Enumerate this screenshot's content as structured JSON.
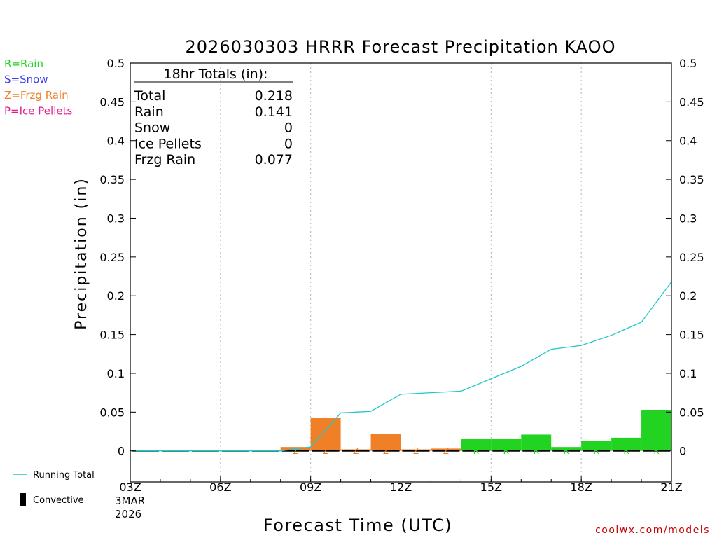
{
  "chart_data": {
    "type": "bar",
    "title": "2026030303 HRRR Forecast Precipitation KAOO",
    "xlabel": "Forecast Time (UTC)",
    "ylabel": "Precipitation (in)",
    "ylim": [
      -0.04,
      0.5
    ],
    "y_ticks": [
      0,
      0.05,
      0.1,
      0.15,
      0.2,
      0.25,
      0.3,
      0.35,
      0.4,
      0.45,
      0.5
    ],
    "y_tick_labels": [
      "0",
      "0.05",
      "0.1",
      "0.15",
      "0.2",
      "0.25",
      "0.3",
      "0.35",
      "0.4",
      "0.45",
      "0.5"
    ],
    "x_range_hours": [
      3,
      21
    ],
    "x_ticks": [
      {
        "hour": 3,
        "label": "03Z"
      },
      {
        "hour": 6,
        "label": "06Z"
      },
      {
        "hour": 9,
        "label": "09Z"
      },
      {
        "hour": 12,
        "label": "12Z"
      },
      {
        "hour": 15,
        "label": "15Z"
      },
      {
        "hour": 18,
        "label": "18Z"
      },
      {
        "hour": 21,
        "label": "21Z"
      }
    ],
    "x_date_label_1": "3MAR",
    "x_date_label_2": "2026",
    "hourly_precip": [
      {
        "hour": 4,
        "value": 0.0,
        "type": "",
        "convective": 0
      },
      {
        "hour": 5,
        "value": 0.0,
        "type": "",
        "convective": 0
      },
      {
        "hour": 6,
        "value": 0.0,
        "type": "",
        "convective": 0
      },
      {
        "hour": 7,
        "value": 0.0,
        "type": "",
        "convective": 0
      },
      {
        "hour": 8,
        "value": 0.0,
        "type": "",
        "convective": 0
      },
      {
        "hour": 9,
        "value": 0.005,
        "type": "Z",
        "convective": 0
      },
      {
        "hour": 10,
        "value": 0.043,
        "type": "Z",
        "convective": 0
      },
      {
        "hour": 11,
        "value": 0.002,
        "type": "Z",
        "convective": 0
      },
      {
        "hour": 12,
        "value": 0.022,
        "type": "Z",
        "convective": 0
      },
      {
        "hour": 13,
        "value": 0.002,
        "type": "Z",
        "convective": 0
      },
      {
        "hour": 14,
        "value": 0.003,
        "type": "Z",
        "convective": 0
      },
      {
        "hour": 15,
        "value": 0.016,
        "type": "R",
        "convective": 0
      },
      {
        "hour": 16,
        "value": 0.016,
        "type": "R",
        "convective": 0
      },
      {
        "hour": 17,
        "value": 0.021,
        "type": "R",
        "convective": 0
      },
      {
        "hour": 18,
        "value": 0.005,
        "type": "R",
        "convective": 0
      },
      {
        "hour": 19,
        "value": 0.013,
        "type": "R",
        "convective": 0
      },
      {
        "hour": 20,
        "value": 0.017,
        "type": "R",
        "convective": 0
      },
      {
        "hour": 21,
        "value": 0.053,
        "type": "R",
        "convective": 0
      }
    ],
    "running_total": {
      "name": "Running Total",
      "x": [
        4,
        5,
        6,
        7,
        8,
        9,
        10,
        11,
        12,
        13,
        14,
        15,
        16,
        17,
        18,
        19,
        20,
        21
      ],
      "values": [
        0.0,
        0.0,
        0.0,
        0.0,
        0.0,
        0.005,
        0.049,
        0.051,
        0.073,
        0.075,
        0.077,
        0.093,
        0.109,
        0.131,
        0.136,
        0.149,
        0.166,
        0.218
      ]
    },
    "totals_box": {
      "header": "18hr Totals (in):",
      "rows": [
        {
          "label": "Total",
          "value": "0.218"
        },
        {
          "label": "Rain",
          "value": "0.141"
        },
        {
          "label": "Snow",
          "value": "0"
        },
        {
          "label": "Ice Pellets",
          "value": "0"
        },
        {
          "label": "Frzg Rain",
          "value": "0.077"
        }
      ]
    },
    "type_legend": [
      {
        "code": "R",
        "text": "R=Rain",
        "color": "#22d322"
      },
      {
        "code": "S",
        "text": "S=Snow",
        "color": "#3c3cf0"
      },
      {
        "code": "Z",
        "text": "Z=Frzg Rain",
        "color": "#f08028"
      },
      {
        "code": "P",
        "text": "P=Ice Pellets",
        "color": "#e0208e"
      }
    ],
    "series_legend": [
      {
        "name": "Running Total",
        "color": "#20c8c8"
      },
      {
        "name": "Convective",
        "color": "#000000"
      }
    ],
    "credit": "coolwx.com/models",
    "credit_color": "#c80000"
  }
}
